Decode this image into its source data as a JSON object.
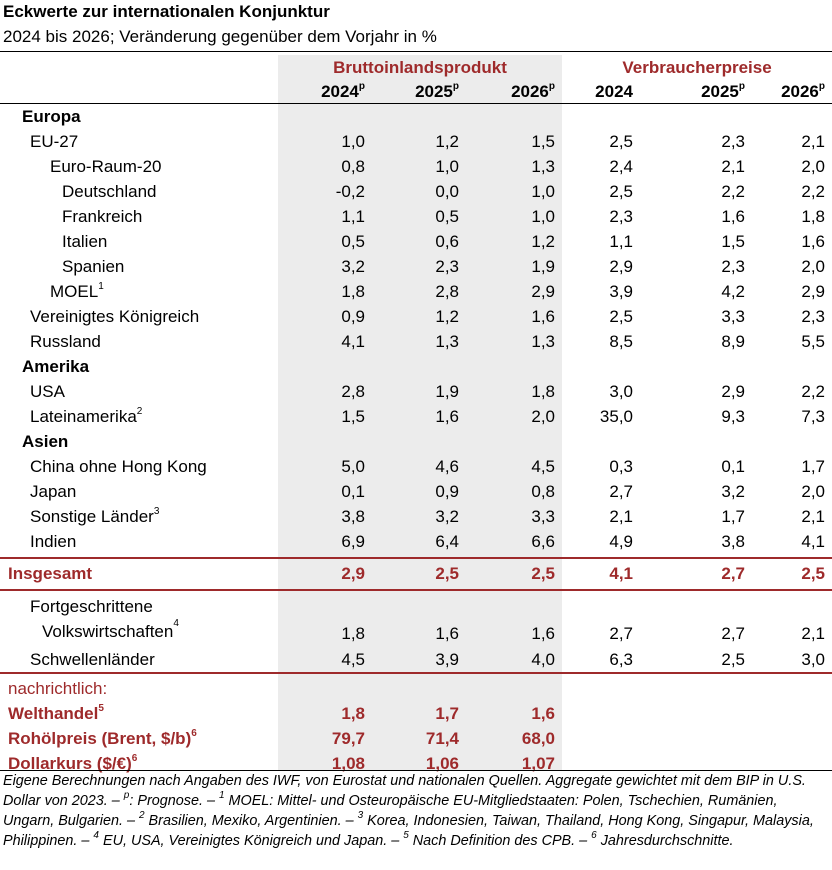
{
  "header": {
    "title": "Eckwerte zur internationalen Konjunktur",
    "subtitle": "2024 bis 2026; Veränderung gegenüber dem Vorjahr in %"
  },
  "table": {
    "groups": [
      "Bruttoinlandsprodukt",
      "Verbraucherpreise"
    ],
    "columns": [
      {
        "label": "2024",
        "sup": "p"
      },
      {
        "label": "2025",
        "sup": "p"
      },
      {
        "label": "2026",
        "sup": "p"
      },
      {
        "label": "2024"
      },
      {
        "label": "2025",
        "sup": "p"
      },
      {
        "label": "2026",
        "sup": "p"
      }
    ],
    "sections": [
      {
        "title": "Europa",
        "rows": [
          {
            "label": "EU-27",
            "values": [
              "1,0",
              "1,2",
              "1,5",
              "2,5",
              "2,3",
              "2,1"
            ],
            "children": [
              {
                "label": "Euro-Raum-20",
                "values": [
                  "0,8",
                  "1,0",
                  "1,3",
                  "2,4",
                  "2,1",
                  "2,0"
                ],
                "children": [
                  {
                    "label": "Deutschland",
                    "values": [
                      "-0,2",
                      "0,0",
                      "1,0",
                      "2,5",
                      "2,2",
                      "2,2"
                    ]
                  },
                  {
                    "label": "Frankreich",
                    "values": [
                      "1,1",
                      "0,5",
                      "1,0",
                      "2,3",
                      "1,6",
                      "1,8"
                    ]
                  },
                  {
                    "label": "Italien",
                    "values": [
                      "0,5",
                      "0,6",
                      "1,2",
                      "1,1",
                      "1,5",
                      "1,6"
                    ]
                  },
                  {
                    "label": "Spanien",
                    "values": [
                      "3,2",
                      "2,3",
                      "1,9",
                      "2,9",
                      "2,3",
                      "2,0"
                    ]
                  }
                ]
              },
              {
                "label": "MOEL",
                "sup": "1",
                "values": [
                  "1,8",
                  "2,8",
                  "2,9",
                  "3,9",
                  "4,2",
                  "2,9"
                ]
              }
            ]
          },
          {
            "label": "Vereinigtes Königreich",
            "values": [
              "0,9",
              "1,2",
              "1,6",
              "2,5",
              "3,3",
              "2,3"
            ]
          },
          {
            "label": "Russland",
            "values": [
              "4,1",
              "1,3",
              "1,3",
              "8,5",
              "8,9",
              "5,5"
            ]
          }
        ]
      },
      {
        "title": "Amerika",
        "rows": [
          {
            "label": "USA",
            "values": [
              "2,8",
              "1,9",
              "1,8",
              "3,0",
              "2,9",
              "2,2"
            ]
          },
          {
            "label": "Lateinamerika",
            "sup": "2",
            "values": [
              "1,5",
              "1,6",
              "2,0",
              "35,0",
              "9,3",
              "7,3"
            ]
          }
        ]
      },
      {
        "title": "Asien",
        "rows": [
          {
            "label": "China ohne Hong Kong",
            "values": [
              "5,0",
              "4,6",
              "4,5",
              "0,3",
              "0,1",
              "1,7"
            ]
          },
          {
            "label": "Japan",
            "values": [
              "0,1",
              "0,9",
              "0,8",
              "2,7",
              "3,2",
              "2,0"
            ]
          },
          {
            "label": "Sonstige Länder",
            "sup": "3",
            "values": [
              "3,8",
              "3,2",
              "3,3",
              "2,1",
              "1,7",
              "2,1"
            ]
          },
          {
            "label": "Indien",
            "values": [
              "6,9",
              "6,4",
              "6,6",
              "4,9",
              "3,8",
              "4,1"
            ]
          }
        ]
      }
    ],
    "total": {
      "label": "Insgesamt",
      "values": [
        "2,9",
        "2,5",
        "2,5",
        "4,1",
        "2,7",
        "2,5"
      ]
    },
    "groups_rows": [
      {
        "label_lines": [
          "Fortgeschrittene",
          "Volkswirtschaften"
        ],
        "sup": "4",
        "values": [
          "1,8",
          "1,6",
          "1,6",
          "2,7",
          "2,7",
          "2,1"
        ]
      },
      {
        "label": "Schwellenländer",
        "values": [
          "4,5",
          "3,9",
          "4,0",
          "6,3",
          "2,5",
          "3,0"
        ]
      }
    ],
    "memo": {
      "title": "nachrichtlich:",
      "rows": [
        {
          "label": "Welthandel",
          "sup": "5",
          "values": [
            "1,8",
            "1,7",
            "1,6"
          ]
        },
        {
          "label": "Rohölpreis (Brent, $/b)",
          "sup": "6",
          "values": [
            "79,7",
            "71,4",
            "68,0"
          ]
        },
        {
          "label": "Dollarkurs ($/€)",
          "sup": "6",
          "values": [
            "1,08",
            "1,06",
            "1,07"
          ]
        }
      ]
    }
  },
  "footnote": {
    "parts": [
      {
        "text": "Eigene Berechnungen nach Angaben des IWF, von Eurostat und nationalen Quellen. Aggregate gewichtet mit dem BIP in U.S. Dollar von 2023. – "
      },
      {
        "sup": "p"
      },
      {
        "text": ": Prognose. – "
      },
      {
        "sup": "1"
      },
      {
        "text": " MOEL: Mittel- und Osteuropäische EU-Mitgliedstaaten: Polen, Tschechien, Rumänien, Ungarn, Bulgarien. – "
      },
      {
        "sup": "2"
      },
      {
        "text": " Brasilien, Mexiko, Argentinien. – "
      },
      {
        "sup": "3"
      },
      {
        "text": " Korea, Indonesien, Taiwan, Thailand, Hong Kong, Singapur, Malaysia, Philippinen. – "
      },
      {
        "sup": "4"
      },
      {
        "text": " EU, USA, Vereinigtes Königreich und Japan. – "
      },
      {
        "sup": "5"
      },
      {
        "text": " Nach Definition des CPB. – "
      },
      {
        "sup": "6"
      },
      {
        "text": " Jahresdurchschnitte."
      }
    ]
  }
}
